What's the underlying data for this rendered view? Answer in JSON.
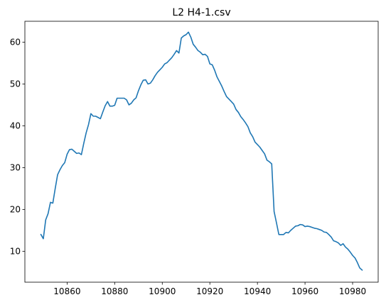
{
  "chart_data": {
    "type": "line",
    "title": "L2 H4-1.csv",
    "xlabel": "",
    "ylabel": "",
    "xlim": [
      10842.25,
      10990.75
    ],
    "ylim": [
      2.6,
      65.0
    ],
    "xticks": [
      10860,
      10880,
      10900,
      10920,
      10940,
      10960,
      10980
    ],
    "yticks": [
      10,
      20,
      30,
      40,
      50,
      60
    ],
    "grid": false,
    "legend": false,
    "color": "#1f77b4",
    "series": [
      {
        "x": [
          10849,
          10850,
          10851,
          10852,
          10853,
          10854,
          10855,
          10856,
          10857,
          10858,
          10859,
          10860,
          10861,
          10862,
          10863,
          10864,
          10865,
          10866,
          10867,
          10868,
          10869,
          10870,
          10871,
          10872,
          10873,
          10874,
          10875,
          10876,
          10877,
          10878,
          10879,
          10880,
          10881,
          10882,
          10883,
          10884,
          10885,
          10886,
          10887,
          10888,
          10889,
          10890,
          10891,
          10892,
          10893,
          10894,
          10895,
          10896,
          10897,
          10898,
          10899,
          10900,
          10901,
          10902,
          10903,
          10904,
          10905,
          10906,
          10907,
          10908,
          10909,
          10910,
          10911,
          10912,
          10913,
          10914,
          10915,
          10916,
          10917,
          10918,
          10919,
          10920,
          10921,
          10922,
          10923,
          10924,
          10925,
          10926,
          10927,
          10928,
          10929,
          10930,
          10931,
          10932,
          10933,
          10934,
          10935,
          10936,
          10937,
          10938,
          10939,
          10940,
          10941,
          10942,
          10943,
          10944,
          10945,
          10946,
          10947,
          10948,
          10949,
          10950,
          10951,
          10952,
          10953,
          10954,
          10955,
          10956,
          10957,
          10958,
          10959,
          10960,
          10961,
          10962,
          10963,
          10964,
          10965,
          10966,
          10967,
          10968,
          10969,
          10970,
          10971,
          10972,
          10973,
          10974,
          10975,
          10976,
          10977,
          10978,
          10979,
          10980,
          10981,
          10982,
          10983,
          10984
        ],
        "y": [
          14.0,
          13.0,
          17.5,
          19.0,
          21.7,
          21.5,
          25.0,
          28.3,
          29.5,
          30.5,
          31.2,
          33.2,
          34.3,
          34.4,
          33.9,
          33.4,
          33.5,
          33.1,
          35.8,
          38.3,
          40.3,
          42.9,
          42.3,
          42.3,
          42.0,
          41.7,
          43.3,
          44.8,
          45.8,
          44.7,
          44.7,
          44.9,
          46.6,
          46.6,
          46.6,
          46.6,
          46.2,
          45.0,
          45.4,
          46.2,
          46.7,
          48.4,
          49.8,
          50.9,
          51.0,
          50.0,
          50.2,
          51.0,
          52.0,
          52.8,
          53.4,
          54.0,
          54.8,
          55.1,
          55.7,
          56.3,
          57.1,
          58.0,
          57.4,
          61.0,
          61.5,
          61.8,
          62.4,
          61.2,
          59.5,
          58.8,
          58.0,
          57.6,
          57.0,
          57.1,
          56.6,
          54.8,
          54.6,
          53.3,
          51.7,
          50.6,
          49.5,
          48.2,
          47.0,
          46.4,
          45.8,
          45.2,
          43.9,
          43.2,
          42.2,
          41.5,
          40.7,
          39.8,
          38.3,
          37.4,
          36.1,
          35.5,
          34.9,
          34.1,
          33.3,
          31.8,
          31.4,
          30.9,
          19.5,
          16.8,
          14.0,
          14.0,
          14.0,
          14.5,
          14.4,
          15.0,
          15.5,
          16.0,
          16.1,
          16.4,
          16.3,
          15.9,
          16.0,
          15.9,
          15.7,
          15.5,
          15.4,
          15.2,
          15.0,
          14.6,
          14.5,
          14.0,
          13.4,
          12.5,
          12.3,
          12.0,
          11.4,
          11.8,
          11.0,
          10.5,
          9.8,
          9.0,
          8.4,
          7.3,
          6.0,
          5.5
        ]
      }
    ]
  }
}
